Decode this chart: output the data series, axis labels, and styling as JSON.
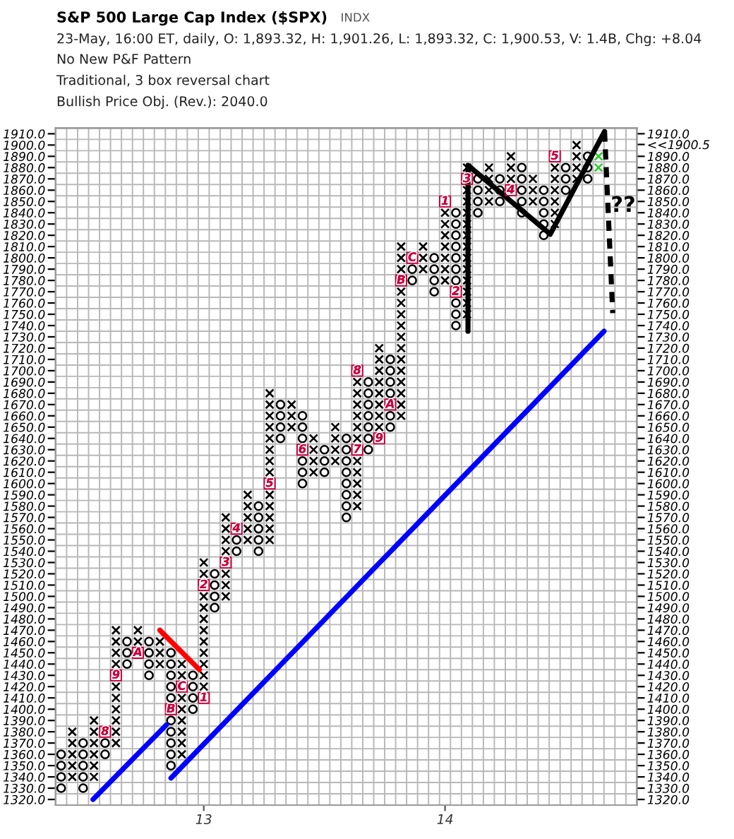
{
  "chart_data": {
    "type": "scatter",
    "title": "S&P 500 Large Cap Index ($SPX)",
    "subtitle": "23-May, 16:00 ET, daily, O: 1,893.32, H: 1,901.26, L: 1,893.32, C: 1,900.53, V: 1.4B, Chg: +8.04",
    "annotations": [
      "INDX",
      "No New P&F Pattern",
      "Traditional, 3 box reversal chart",
      "Bullish Price Obj. (Rev.): 2040.0",
      "??",
      {
        "text": "8",
        "x": 12.591,
        "y": 1380
      },
      {
        "text": "9",
        "x": 12.636,
        "y": 1430
      },
      {
        "text": "A",
        "x": 12.727,
        "y": 1450
      },
      {
        "text": "B",
        "x": 12.864,
        "y": 1400
      },
      {
        "text": "C",
        "x": 12.909,
        "y": 1420
      },
      {
        "text": "1",
        "x": 13,
        "y": 1410
      },
      {
        "text": "2",
        "x": 13,
        "y": 1510
      },
      {
        "text": "3",
        "x": 13.091,
        "y": 1530
      },
      {
        "text": "4",
        "x": 13.136,
        "y": 1560
      },
      {
        "text": "5",
        "x": 13.273,
        "y": 1600
      },
      {
        "text": "6",
        "x": 13.409,
        "y": 1630
      },
      {
        "text": "7",
        "x": 13.636,
        "y": 1630
      },
      {
        "text": "8",
        "x": 13.636,
        "y": 1700
      },
      {
        "text": "9",
        "x": 13.727,
        "y": 1640
      },
      {
        "text": "A",
        "x": 13.773,
        "y": 1670
      },
      {
        "text": "B",
        "x": 13.818,
        "y": 1780
      },
      {
        "text": "C",
        "x": 13.864,
        "y": 1800
      },
      {
        "text": "1",
        "x": 14,
        "y": 1850
      },
      {
        "text": "2",
        "x": 14.045,
        "y": 1770
      },
      {
        "text": "3",
        "x": 14.091,
        "y": 1870
      },
      {
        "text": "4",
        "x": 14.273,
        "y": 1860
      },
      {
        "text": "5",
        "x": 14.455,
        "y": 1890
      }
    ],
    "xlim": [
      12.386,
      14.795
    ],
    "xticks": [
      13,
      14
    ],
    "ylim": [
      1315,
      1915
    ],
    "yticks": [
      {
        "value": 1320,
        "label": "1320.0"
      },
      {
        "value": 1330,
        "label": "1330.0"
      },
      {
        "value": 1340,
        "label": "1340.0"
      },
      {
        "value": 1350,
        "label": "1350.0"
      },
      {
        "value": 1360,
        "label": "1360.0"
      },
      {
        "value": 1370,
        "label": "1370.0"
      },
      {
        "value": 1380,
        "label": "1380.0"
      },
      {
        "value": 1390,
        "label": "1390.0"
      },
      {
        "value": 1400,
        "label": "1400.0"
      },
      {
        "value": 1410,
        "label": "1410.0"
      },
      {
        "value": 1420,
        "label": "1420.0"
      },
      {
        "value": 1430,
        "label": "1430.0"
      },
      {
        "value": 1440,
        "label": "1440.0"
      },
      {
        "value": 1450,
        "label": "1450.0"
      },
      {
        "value": 1460,
        "label": "1460.0"
      },
      {
        "value": 1470,
        "label": "1470.0"
      },
      {
        "value": 1480,
        "label": "1480.0"
      },
      {
        "value": 1490,
        "label": "1490.0"
      },
      {
        "value": 1500,
        "label": "1500.0"
      },
      {
        "value": 1510,
        "label": "1510.0"
      },
      {
        "value": 1520,
        "label": "1520.0"
      },
      {
        "value": 1530,
        "label": "1530.0"
      },
      {
        "value": 1540,
        "label": "1540.0"
      },
      {
        "value": 1550,
        "label": "1550.0"
      },
      {
        "value": 1560,
        "label": "1560.0"
      },
      {
        "value": 1570,
        "label": "1570.0"
      },
      {
        "value": 1580,
        "label": "1580.0"
      },
      {
        "value": 1590,
        "label": "1590.0"
      },
      {
        "value": 1600,
        "label": "1600.0"
      },
      {
        "value": 1610,
        "label": "1610.0"
      },
      {
        "value": 1620,
        "label": "1620.0"
      },
      {
        "value": 1630,
        "label": "1630.0"
      },
      {
        "value": 1640,
        "label": "1640.0"
      },
      {
        "value": 1650,
        "label": "1650.0"
      },
      {
        "value": 1660,
        "label": "1660.0"
      },
      {
        "value": 1670,
        "label": "1670.0"
      },
      {
        "value": 1680,
        "label": "1680.0"
      },
      {
        "value": 1690,
        "label": "1690.0"
      },
      {
        "value": 1700,
        "label": "1700.0"
      },
      {
        "value": 1710,
        "label": "1710.0"
      },
      {
        "value": 1720,
        "label": "1720.0"
      },
      {
        "value": 1730,
        "label": "1730.0"
      },
      {
        "value": 1740,
        "label": "1740.0"
      },
      {
        "value": 1750,
        "label": "1750.0"
      },
      {
        "value": 1760,
        "label": "1760.0"
      },
      {
        "value": 1770,
        "label": "1770.0"
      },
      {
        "value": 1780,
        "label": "1780.0"
      },
      {
        "value": 1790,
        "label": "1790.0"
      },
      {
        "value": 1800,
        "label": "1800.0"
      },
      {
        "value": 1810,
        "label": "1810.0"
      },
      {
        "value": 1820,
        "label": "1820.0"
      },
      {
        "value": 1830,
        "label": "1830.0"
      },
      {
        "value": 1840,
        "label": "1840.0"
      },
      {
        "value": 1850,
        "label": "1850.0"
      },
      {
        "value": 1860,
        "label": "1860.0"
      },
      {
        "value": 1870,
        "label": "1870.0"
      },
      {
        "value": 1880,
        "label": "1880.0"
      },
      {
        "value": 1890,
        "label": "1890.0"
      },
      {
        "value": 1900,
        "label": "1900.0"
      },
      {
        "value": 1910,
        "label": "1910.0"
      }
    ],
    "y2lim": [
      1315,
      1915
    ],
    "y2ticks": [
      {
        "value": 1320,
        "label": "1320.0"
      },
      {
        "value": 1330,
        "label": "1330.0"
      },
      {
        "value": 1340,
        "label": "1340.0"
      },
      {
        "value": 1350,
        "label": "1350.0"
      },
      {
        "value": 1360,
        "label": "1360.0"
      },
      {
        "value": 1370,
        "label": "1370.0"
      },
      {
        "value": 1380,
        "label": "1380.0"
      },
      {
        "value": 1390,
        "label": "1390.0"
      },
      {
        "value": 1400,
        "label": "1400.0"
      },
      {
        "value": 1410,
        "label": "1410.0"
      },
      {
        "value": 1420,
        "label": "1420.0"
      },
      {
        "value": 1430,
        "label": "1430.0"
      },
      {
        "value": 1440,
        "label": "1440.0"
      },
      {
        "value": 1450,
        "label": "1450.0"
      },
      {
        "value": 1460,
        "label": "1460.0"
      },
      {
        "value": 1470,
        "label": "1470.0"
      },
      {
        "value": 1480,
        "label": "1480.0"
      },
      {
        "value": 1490,
        "label": "1490.0"
      },
      {
        "value": 1500,
        "label": "1500.0"
      },
      {
        "value": 1510,
        "label": "1510.0"
      },
      {
        "value": 1520,
        "label": "1520.0"
      },
      {
        "value": 1530,
        "label": "1530.0"
      },
      {
        "value": 1540,
        "label": "1540.0"
      },
      {
        "value": 1550,
        "label": "1550.0"
      },
      {
        "value": 1560,
        "label": "1560.0"
      },
      {
        "value": 1570,
        "label": "1570.0"
      },
      {
        "value": 1580,
        "label": "1580.0"
      },
      {
        "value": 1590,
        "label": "1590.0"
      },
      {
        "value": 1600,
        "label": "1600.0"
      },
      {
        "value": 1610,
        "label": "1610.0"
      },
      {
        "value": 1620,
        "label": "1620.0"
      },
      {
        "value": 1630,
        "label": "1630.0"
      },
      {
        "value": 1640,
        "label": "1640.0"
      },
      {
        "value": 1650,
        "label": "1650.0"
      },
      {
        "value": 1660,
        "label": "1660.0"
      },
      {
        "value": 1670,
        "label": "1670.0"
      },
      {
        "value": 1680,
        "label": "1680.0"
      },
      {
        "value": 1690,
        "label": "1690.0"
      },
      {
        "value": 1700,
        "label": "1700.0"
      },
      {
        "value": 1710,
        "label": "1710.0"
      },
      {
        "value": 1720,
        "label": "1720.0"
      },
      {
        "value": 1730,
        "label": "1730.0"
      },
      {
        "value": 1740,
        "label": "1740.0"
      },
      {
        "value": 1750,
        "label": "1750.0"
      },
      {
        "value": 1760,
        "label": "1760.0"
      },
      {
        "value": 1770,
        "label": "1770.0"
      },
      {
        "value": 1780,
        "label": "1780.0"
      },
      {
        "value": 1790,
        "label": "1790.0"
      },
      {
        "value": 1800,
        "label": "1800.0"
      },
      {
        "value": 1810,
        "label": "1810.0"
      },
      {
        "value": 1820,
        "label": "1820.0"
      },
      {
        "value": 1830,
        "label": "1830.0"
      },
      {
        "value": 1840,
        "label": "1840.0"
      },
      {
        "value": 1850,
        "label": "1850.0"
      },
      {
        "value": 1860,
        "label": "1860.0"
      },
      {
        "value": 1870,
        "label": "1870.0"
      },
      {
        "value": 1880,
        "label": "1880.0"
      },
      {
        "value": 1890,
        "label": "1890.0"
      },
      {
        "value": 1900.5,
        "label": "<<1900.5"
      },
      {
        "value": 1910,
        "label": "1910.0"
      }
    ],
    "grid": true,
    "series": [
      {
        "marker": "cross",
        "color": "#000000",
        "x": [
          12.455,
          12.455,
          12.455,
          12.455,
          12.455,
          12.545,
          12.545,
          12.545,
          12.545,
          12.545,
          12.545,
          12.636,
          12.636,
          12.636,
          12.636,
          12.636,
          12.636,
          12.636,
          12.636,
          12.636,
          12.636,
          12.727,
          12.727,
          12.818,
          12.818,
          12.818,
          12.909,
          12.909,
          12.909,
          12.909,
          12.909,
          12.909,
          12.909,
          12.909,
          13,
          13,
          13,
          13,
          13,
          13,
          13,
          13,
          13,
          13,
          13,
          13.091,
          13.091,
          13.091,
          13.091,
          13.091,
          13.091,
          13.091,
          13.182,
          13.182,
          13.182,
          13.182,
          13.182,
          13.273,
          13.273,
          13.273,
          13.273,
          13.273,
          13.273,
          13.273,
          13.273,
          13.273,
          13.273,
          13.273,
          13.273,
          13.273,
          13.364,
          13.364,
          13.364,
          13.455,
          13.455,
          13.455,
          13.455,
          13.545,
          13.545,
          13.545,
          13.545,
          13.636,
          13.636,
          13.636,
          13.636,
          13.636,
          13.636,
          13.636,
          13.636,
          13.636,
          13.636,
          13.636,
          13.727,
          13.727,
          13.727,
          13.727,
          13.727,
          13.727,
          13.727,
          13.727,
          13.818,
          13.818,
          13.818,
          13.818,
          13.818,
          13.818,
          13.818,
          13.818,
          13.818,
          13.818,
          13.818,
          13.818,
          13.818,
          13.818,
          13.818,
          13.909,
          13.909,
          13.909,
          14,
          14,
          14,
          14,
          14,
          14,
          14,
          14.091,
          14.091,
          14.091,
          14.091,
          14.091,
          14.091,
          14.091,
          14.091,
          14.091,
          14.091,
          14.091,
          14.091,
          14.091,
          14.182,
          14.182,
          14.182,
          14.182,
          14.273,
          14.273,
          14.273,
          14.364,
          14.364,
          14.364,
          14.455,
          14.455,
          14.455,
          14.455,
          14.455,
          14.455,
          14.545,
          14.545,
          14.545,
          14.545
        ],
        "values": [
          1340,
          1350,
          1360,
          1370,
          1380,
          1340,
          1350,
          1360,
          1370,
          1380,
          1390,
          1370,
          1380,
          1390,
          1400,
          1410,
          1420,
          1440,
          1450,
          1460,
          1470,
          1460,
          1470,
          1440,
          1450,
          1460,
          1360,
          1370,
          1380,
          1390,
          1400,
          1410,
          1430,
          1440,
          1420,
          1430,
          1440,
          1450,
          1460,
          1470,
          1480,
          1490,
          1500,
          1520,
          1530,
          1500,
          1510,
          1520,
          1540,
          1550,
          1560,
          1570,
          1550,
          1560,
          1570,
          1580,
          1590,
          1550,
          1560,
          1570,
          1580,
          1590,
          1610,
          1620,
          1630,
          1640,
          1650,
          1660,
          1670,
          1680,
          1650,
          1660,
          1670,
          1610,
          1620,
          1630,
          1640,
          1620,
          1630,
          1640,
          1650,
          1580,
          1590,
          1600,
          1610,
          1620,
          1640,
          1650,
          1660,
          1670,
          1680,
          1690,
          1650,
          1660,
          1670,
          1680,
          1690,
          1700,
          1710,
          1720,
          1660,
          1670,
          1680,
          1690,
          1700,
          1710,
          1720,
          1730,
          1740,
          1750,
          1760,
          1770,
          1790,
          1800,
          1810,
          1790,
          1800,
          1810,
          1780,
          1790,
          1800,
          1810,
          1820,
          1830,
          1840,
          1750,
          1760,
          1770,
          1780,
          1790,
          1800,
          1810,
          1820,
          1830,
          1840,
          1850,
          1860,
          1880,
          1850,
          1860,
          1870,
          1880,
          1870,
          1880,
          1890,
          1850,
          1860,
          1870,
          1830,
          1840,
          1850,
          1860,
          1870,
          1880,
          1870,
          1880,
          1890,
          1900
        ]
      },
      {
        "marker": "circle",
        "color": "#000000",
        "x": [
          12.409,
          12.409,
          12.409,
          12.409,
          12.5,
          12.5,
          12.5,
          12.5,
          12.5,
          12.591,
          12.591,
          12.682,
          12.682,
          12.682,
          12.773,
          12.773,
          12.773,
          12.773,
          12.864,
          12.864,
          12.864,
          12.864,
          12.864,
          12.864,
          12.864,
          12.864,
          12.864,
          12.864,
          12.955,
          12.955,
          12.955,
          12.955,
          13.045,
          13.045,
          13.045,
          13.045,
          13.136,
          13.136,
          13.227,
          13.227,
          13.227,
          13.227,
          13.227,
          13.318,
          13.318,
          13.318,
          13.318,
          13.409,
          13.409,
          13.409,
          13.409,
          13.409,
          13.409,
          13.5,
          13.5,
          13.5,
          13.591,
          13.591,
          13.591,
          13.591,
          13.591,
          13.591,
          13.591,
          13.591,
          13.682,
          13.682,
          13.682,
          13.682,
          13.682,
          13.682,
          13.682,
          13.773,
          13.773,
          13.773,
          13.773,
          13.773,
          13.773,
          13.864,
          13.864,
          13.955,
          13.955,
          13.955,
          13.955,
          14.045,
          14.045,
          14.045,
          14.045,
          14.045,
          14.045,
          14.045,
          14.045,
          14.045,
          14.045,
          14.136,
          14.136,
          14.136,
          14.136,
          14.227,
          14.227,
          14.227,
          14.318,
          14.318,
          14.318,
          14.318,
          14.318,
          14.409,
          14.409,
          14.409,
          14.409,
          14.409,
          14.5,
          14.5,
          14.5,
          14.591,
          14.591,
          14.591
        ],
        "values": [
          1330,
          1340,
          1350,
          1360,
          1330,
          1340,
          1350,
          1360,
          1370,
          1360,
          1370,
          1440,
          1450,
          1460,
          1430,
          1440,
          1450,
          1460,
          1350,
          1360,
          1370,
          1380,
          1390,
          1410,
          1420,
          1430,
          1440,
          1450,
          1400,
          1410,
          1420,
          1430,
          1490,
          1500,
          1510,
          1520,
          1540,
          1550,
          1540,
          1550,
          1560,
          1570,
          1580,
          1640,
          1650,
          1660,
          1670,
          1600,
          1610,
          1620,
          1640,
          1650,
          1660,
          1610,
          1620,
          1630,
          1570,
          1580,
          1590,
          1600,
          1610,
          1620,
          1630,
          1640,
          1630,
          1640,
          1650,
          1660,
          1670,
          1680,
          1690,
          1650,
          1660,
          1680,
          1690,
          1700,
          1710,
          1780,
          1790,
          1770,
          1780,
          1790,
          1800,
          1740,
          1750,
          1760,
          1780,
          1790,
          1800,
          1810,
          1820,
          1830,
          1840,
          1840,
          1850,
          1860,
          1870,
          1850,
          1860,
          1870,
          1840,
          1850,
          1860,
          1870,
          1880,
          1820,
          1830,
          1840,
          1850,
          1860,
          1860,
          1870,
          1880,
          1870,
          1880,
          1890
        ]
      },
      {
        "marker": "cross",
        "color": "#33cc33",
        "x": [
          14.636,
          14.636
        ],
        "values": [
          1880,
          1890
        ]
      },
      {
        "marker": "square",
        "color": "#c8003c",
        "x": [
          12.591,
          12.636,
          12.727,
          12.864,
          12.909,
          13,
          13,
          13.091,
          13.136,
          13.273,
          13.409,
          13.636,
          13.636,
          13.727,
          13.773,
          13.818,
          13.864,
          14,
          14.045,
          14.091,
          14.273,
          14.455
        ],
        "values": [
          1380,
          1430,
          1450,
          1400,
          1420,
          1410,
          1510,
          1530,
          1560,
          1600,
          1630,
          1630,
          1700,
          1640,
          1670,
          1780,
          1800,
          1850,
          1770,
          1870,
          1860,
          1890
        ]
      },
      {
        "type": "line",
        "color": "#0000ff",
        "x": [
          12.541,
          12.845
        ],
        "values": [
          1320,
          1386
        ]
      },
      {
        "type": "line",
        "color": "#0000ff",
        "x": [
          12.864,
          14.659
        ],
        "values": [
          1339,
          1735
        ]
      },
      {
        "type": "line",
        "color": "#ff0000",
        "x": [
          12.818,
          12.982
        ],
        "values": [
          1470,
          1435
        ]
      },
      {
        "type": "line",
        "color": "#000000",
        "x": [
          14.095,
          14.095,
          14.436,
          14.661
        ],
        "values": [
          1735,
          1882,
          1821,
          1912
        ]
      },
      {
        "type": "line",
        "color": "#000000",
        "line_style": "dashed",
        "x": [
          14.661,
          14.695
        ],
        "values": [
          1912,
          1751
        ]
      }
    ]
  }
}
